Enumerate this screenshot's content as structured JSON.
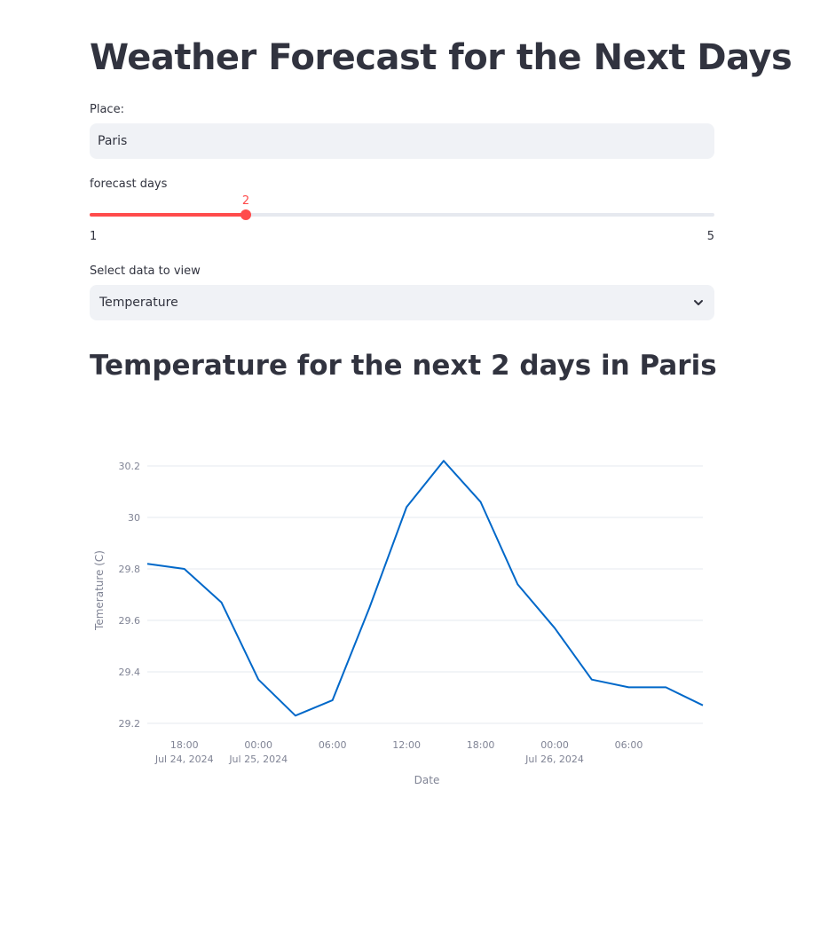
{
  "page_title": "Weather Forecast for the Next Days",
  "place": {
    "label": "Place:",
    "value": "Paris"
  },
  "days_slider": {
    "label": "forecast days",
    "value": 2,
    "min": 1,
    "max": 5
  },
  "data_select": {
    "label": "Select data to view",
    "selected": "Temperature"
  },
  "chart_heading": "Temperature for the next 2 days in Paris",
  "colors": {
    "accent": "#ff4b4b",
    "line": "#0068c9",
    "field_bg": "#f0f2f6"
  },
  "chart_data": {
    "type": "line",
    "xlabel": "Date",
    "ylabel": "Temerature (C)",
    "ylim": [
      29.2,
      30.2
    ],
    "y_ticks": [
      "29.2",
      "29.4",
      "29.6",
      "29.8",
      "30",
      "30.2"
    ],
    "x_ticks": [
      {
        "time": "18:00",
        "date": "Jul 24, 2024",
        "x": "2024-07-24 18:00"
      },
      {
        "time": "00:00",
        "date": "Jul 25, 2024",
        "x": "2024-07-25 00:00"
      },
      {
        "time": "06:00",
        "date": "",
        "x": "2024-07-25 06:00"
      },
      {
        "time": "12:00",
        "date": "",
        "x": "2024-07-25 12:00"
      },
      {
        "time": "18:00",
        "date": "",
        "x": "2024-07-25 18:00"
      },
      {
        "time": "00:00",
        "date": "Jul 26, 2024",
        "x": "2024-07-26 00:00"
      },
      {
        "time": "06:00",
        "date": "",
        "x": "2024-07-26 06:00"
      }
    ],
    "series": [
      {
        "x": [
          "2024-07-24 15:00",
          "2024-07-24 18:00",
          "2024-07-24 21:00",
          "2024-07-25 00:00",
          "2024-07-25 03:00",
          "2024-07-25 06:00",
          "2024-07-25 09:00",
          "2024-07-25 12:00",
          "2024-07-25 15:00",
          "2024-07-25 18:00",
          "2024-07-25 21:00",
          "2024-07-26 00:00",
          "2024-07-26 03:00",
          "2024-07-26 06:00",
          "2024-07-26 09:00",
          "2024-07-26 12:00"
        ],
        "values": [
          29.82,
          29.8,
          29.67,
          29.37,
          29.23,
          29.29,
          29.65,
          30.04,
          30.22,
          30.06,
          29.74,
          29.57,
          29.37,
          29.34,
          29.34,
          29.27
        ]
      }
    ],
    "grid": true
  }
}
